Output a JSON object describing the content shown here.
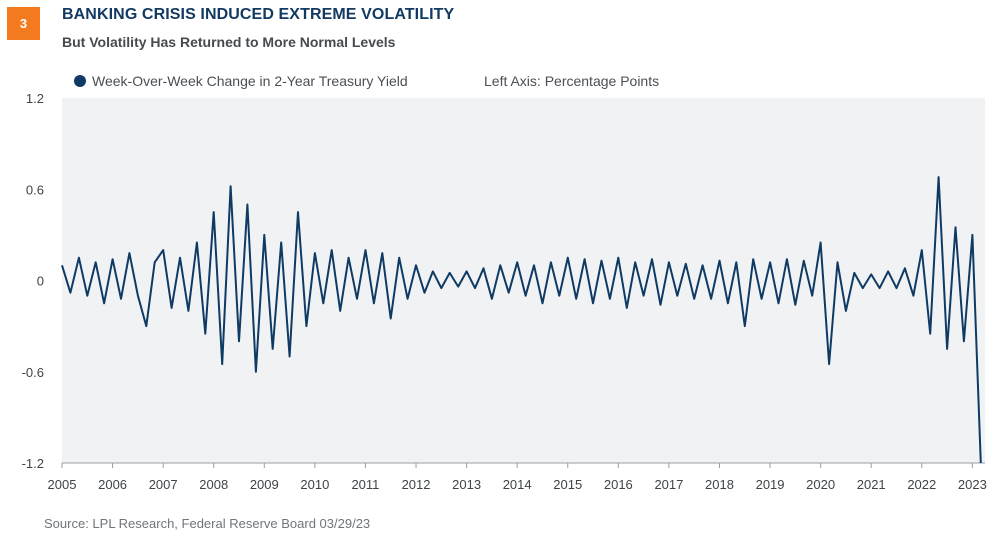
{
  "header": {
    "badge": "3",
    "title": "BANKING CRISIS INDUCED EXTREME VOLATILITY",
    "subtitle": "But Volatility Has Returned to More Normal Levels"
  },
  "legend": {
    "series_label": "Week-Over-Week Change in 2-Year Treasury Yield",
    "axis_note": "Left Axis: Percentage Points"
  },
  "footer": {
    "source": "Source: LPL Research, Federal Reserve Board  03/29/23"
  },
  "colors": {
    "series": "#0f3a63",
    "plot_bg": "#f1f2f4",
    "badge": "#f47a20"
  },
  "chart_data": {
    "type": "line",
    "series": [
      {
        "name": "Week-Over-Week Change in 2-Year Treasury Yield",
        "x": [
          "2005-01",
          "2005-03",
          "2005-05",
          "2005-07",
          "2005-09",
          "2005-11",
          "2006-01",
          "2006-03",
          "2006-05",
          "2006-07",
          "2006-09",
          "2006-11",
          "2007-01",
          "2007-03",
          "2007-05",
          "2007-07",
          "2007-09",
          "2007-11",
          "2008-01",
          "2008-03",
          "2008-05",
          "2008-07",
          "2008-09",
          "2008-11",
          "2009-01",
          "2009-03",
          "2009-05",
          "2009-07",
          "2009-09",
          "2009-11",
          "2010-01",
          "2010-03",
          "2010-05",
          "2010-07",
          "2010-09",
          "2010-11",
          "2011-01",
          "2011-03",
          "2011-05",
          "2011-07",
          "2011-09",
          "2011-11",
          "2012-01",
          "2012-03",
          "2012-05",
          "2012-07",
          "2012-09",
          "2012-11",
          "2013-01",
          "2013-03",
          "2013-05",
          "2013-07",
          "2013-09",
          "2013-11",
          "2014-01",
          "2014-03",
          "2014-05",
          "2014-07",
          "2014-09",
          "2014-11",
          "2015-01",
          "2015-03",
          "2015-05",
          "2015-07",
          "2015-09",
          "2015-11",
          "2016-01",
          "2016-03",
          "2016-05",
          "2016-07",
          "2016-09",
          "2016-11",
          "2017-01",
          "2017-03",
          "2017-05",
          "2017-07",
          "2017-09",
          "2017-11",
          "2018-01",
          "2018-03",
          "2018-05",
          "2018-07",
          "2018-09",
          "2018-11",
          "2019-01",
          "2019-03",
          "2019-05",
          "2019-07",
          "2019-09",
          "2019-11",
          "2020-01",
          "2020-03",
          "2020-05",
          "2020-07",
          "2020-09",
          "2020-11",
          "2021-01",
          "2021-03",
          "2021-05",
          "2021-07",
          "2021-09",
          "2021-11",
          "2022-01",
          "2022-03",
          "2022-05",
          "2022-07",
          "2022-09",
          "2022-11",
          "2023-01",
          "2023-03"
        ],
        "values": [
          0.1,
          -0.08,
          0.15,
          -0.1,
          0.12,
          -0.15,
          0.14,
          -0.12,
          0.18,
          -0.1,
          -0.3,
          0.12,
          0.2,
          -0.18,
          0.15,
          -0.2,
          0.25,
          -0.35,
          0.45,
          -0.55,
          0.62,
          -0.4,
          0.5,
          -0.6,
          0.3,
          -0.45,
          0.25,
          -0.5,
          0.45,
          -0.3,
          0.18,
          -0.15,
          0.2,
          -0.2,
          0.15,
          -0.12,
          0.2,
          -0.15,
          0.18,
          -0.25,
          0.15,
          -0.12,
          0.1,
          -0.08,
          0.06,
          -0.05,
          0.05,
          -0.04,
          0.06,
          -0.05,
          0.08,
          -0.12,
          0.1,
          -0.08,
          0.12,
          -0.1,
          0.1,
          -0.15,
          0.12,
          -0.1,
          0.15,
          -0.12,
          0.14,
          -0.15,
          0.13,
          -0.12,
          0.15,
          -0.18,
          0.12,
          -0.1,
          0.14,
          -0.16,
          0.12,
          -0.1,
          0.11,
          -0.12,
          0.1,
          -0.12,
          0.13,
          -0.15,
          0.12,
          -0.3,
          0.14,
          -0.12,
          0.12,
          -0.15,
          0.14,
          -0.16,
          0.13,
          -0.1,
          0.25,
          -0.55,
          0.12,
          -0.2,
          0.05,
          -0.05,
          0.04,
          -0.05,
          0.06,
          -0.05,
          0.08,
          -0.1,
          0.2,
          -0.35,
          0.68,
          -0.45,
          0.35,
          -0.4,
          0.3,
          -1.2
        ]
      }
    ],
    "title": "BANKING CRISIS INDUCED EXTREME VOLATILITY",
    "xlabel": "",
    "ylabel": "Left Axis: Percentage Points",
    "ylim": [
      -1.2,
      1.2
    ],
    "yticks": [
      "1.2",
      "0.6",
      "0",
      "-0.6",
      "-1.2"
    ],
    "xticks": [
      "2005",
      "2006",
      "2007",
      "2008",
      "2009",
      "2010",
      "2011",
      "2012",
      "2013",
      "2014",
      "2015",
      "2016",
      "2017",
      "2018",
      "2019",
      "2020",
      "2021",
      "2022",
      "2023"
    ],
    "grid": false,
    "legend": "top-left"
  }
}
